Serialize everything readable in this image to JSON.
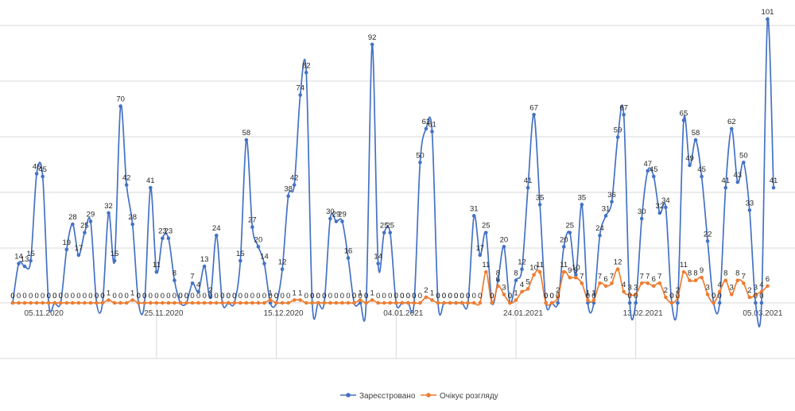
{
  "chart_data": {
    "type": "line",
    "title": "",
    "xlabel": "",
    "ylabel": "",
    "ylim": [
      0,
      105
    ],
    "grid": true,
    "legend_position": "bottom",
    "x_tick_labels": [
      "05.11.2020",
      "25.11.2020",
      "15.12.2020",
      "04.01.2021",
      "24.01.2021",
      "13.02.2021",
      "05.03.2021"
    ],
    "x_tick_indices": [
      4,
      24,
      44,
      64,
      84,
      104,
      124
    ],
    "series": [
      {
        "name": "Зареєстровано",
        "color": "#4472c4",
        "values": [
          0,
          14,
          13,
          15,
          46,
          45,
          0,
          0,
          0,
          19,
          28,
          17,
          25,
          29,
          0,
          0,
          32,
          15,
          70,
          42,
          28,
          0,
          0,
          41,
          11,
          23,
          23,
          8,
          0,
          0,
          7,
          4,
          13,
          2,
          24,
          0,
          0,
          0,
          15,
          58,
          27,
          20,
          14,
          0,
          0,
          12,
          38,
          42,
          74,
          82,
          0,
          0,
          0,
          30,
          29,
          29,
          16,
          0,
          0,
          0,
          92,
          14,
          25,
          25,
          0,
          0,
          0,
          0,
          50,
          62,
          61,
          0,
          0,
          0,
          0,
          0,
          0,
          31,
          17,
          25,
          0,
          8,
          20,
          0,
          8,
          12,
          41,
          67,
          35,
          0,
          0,
          0,
          20,
          25,
          10,
          35,
          0,
          0,
          24,
          31,
          36,
          59,
          67,
          0,
          0,
          30,
          47,
          45,
          32,
          34,
          0,
          0,
          65,
          49,
          58,
          45,
          22,
          0,
          0,
          41,
          62,
          43,
          50,
          33,
          0,
          0,
          101,
          41
        ]
      },
      {
        "name": "Очікує розгляду",
        "color": "#ed7d31",
        "values": [
          0,
          0,
          0,
          0,
          0,
          0,
          0,
          0,
          0,
          0,
          0,
          0,
          0,
          0,
          0,
          0,
          1,
          0,
          0,
          0,
          1,
          0,
          0,
          0,
          0,
          0,
          0,
          0,
          0,
          0,
          0,
          0,
          0,
          0,
          0,
          0,
          0,
          0,
          0,
          0,
          0,
          0,
          0,
          1,
          0,
          0,
          0,
          1,
          1,
          0,
          0,
          0,
          0,
          0,
          0,
          0,
          0,
          0,
          1,
          0,
          1,
          0,
          0,
          0,
          0,
          0,
          0,
          0,
          0,
          2,
          1,
          0,
          0,
          0,
          0,
          0,
          0,
          0,
          0,
          11,
          0,
          6,
          3,
          0,
          1,
          4,
          5,
          10,
          11,
          0,
          0,
          2,
          11,
          9,
          9,
          7,
          1,
          1,
          7,
          6,
          7,
          12,
          4,
          3,
          3,
          7,
          7,
          6,
          7,
          2,
          0,
          2,
          11,
          8,
          8,
          9,
          3,
          0,
          4,
          8,
          3,
          8,
          7,
          2,
          3,
          4,
          6
        ]
      }
    ]
  },
  "legend": {
    "items": [
      {
        "label": "Зареєстровано",
        "color": "#4472c4"
      },
      {
        "label": "Очікує розгляду",
        "color": "#ed7d31"
      }
    ]
  }
}
